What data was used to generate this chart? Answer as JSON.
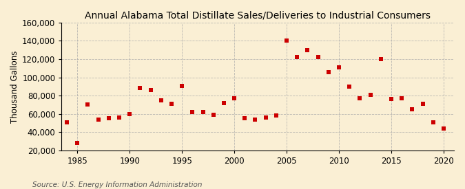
{
  "title": "Annual Alabama Total Distillate Sales/Deliveries to Industrial Consumers",
  "ylabel": "Thousand Gallons",
  "source": "Source: U.S. Energy Information Administration",
  "background_color": "#faefd4",
  "plot_bg_color": "#faefd4",
  "marker_color": "#cc0000",
  "years": [
    1984,
    1985,
    1986,
    1987,
    1988,
    1989,
    1990,
    1991,
    1992,
    1993,
    1994,
    1995,
    1996,
    1997,
    1998,
    1999,
    2000,
    2001,
    2002,
    2003,
    2004,
    2005,
    2006,
    2007,
    2008,
    2009,
    2010,
    2011,
    2012,
    2013,
    2014,
    2015,
    2016,
    2017,
    2018,
    2019,
    2020
  ],
  "values": [
    51000,
    28000,
    70000,
    54000,
    55000,
    56000,
    60000,
    88000,
    86000,
    75000,
    71000,
    91000,
    62000,
    62000,
    59000,
    72000,
    77000,
    55000,
    54000,
    56000,
    58000,
    140000,
    122000,
    130000,
    122000,
    106000,
    111000,
    90000,
    77000,
    81000,
    120000,
    76000,
    77000,
    65000,
    71000,
    51000,
    44000
  ],
  "ylim": [
    20000,
    160000
  ],
  "yticks": [
    20000,
    40000,
    60000,
    80000,
    100000,
    120000,
    140000,
    160000
  ],
  "xlim": [
    1983.5,
    2021
  ],
  "xticks": [
    1985,
    1990,
    1995,
    2000,
    2005,
    2010,
    2015,
    2020
  ],
  "grid_color": "#aaaaaa",
  "title_fontsize": 10,
  "axis_fontsize": 8.5,
  "source_fontsize": 7.5
}
